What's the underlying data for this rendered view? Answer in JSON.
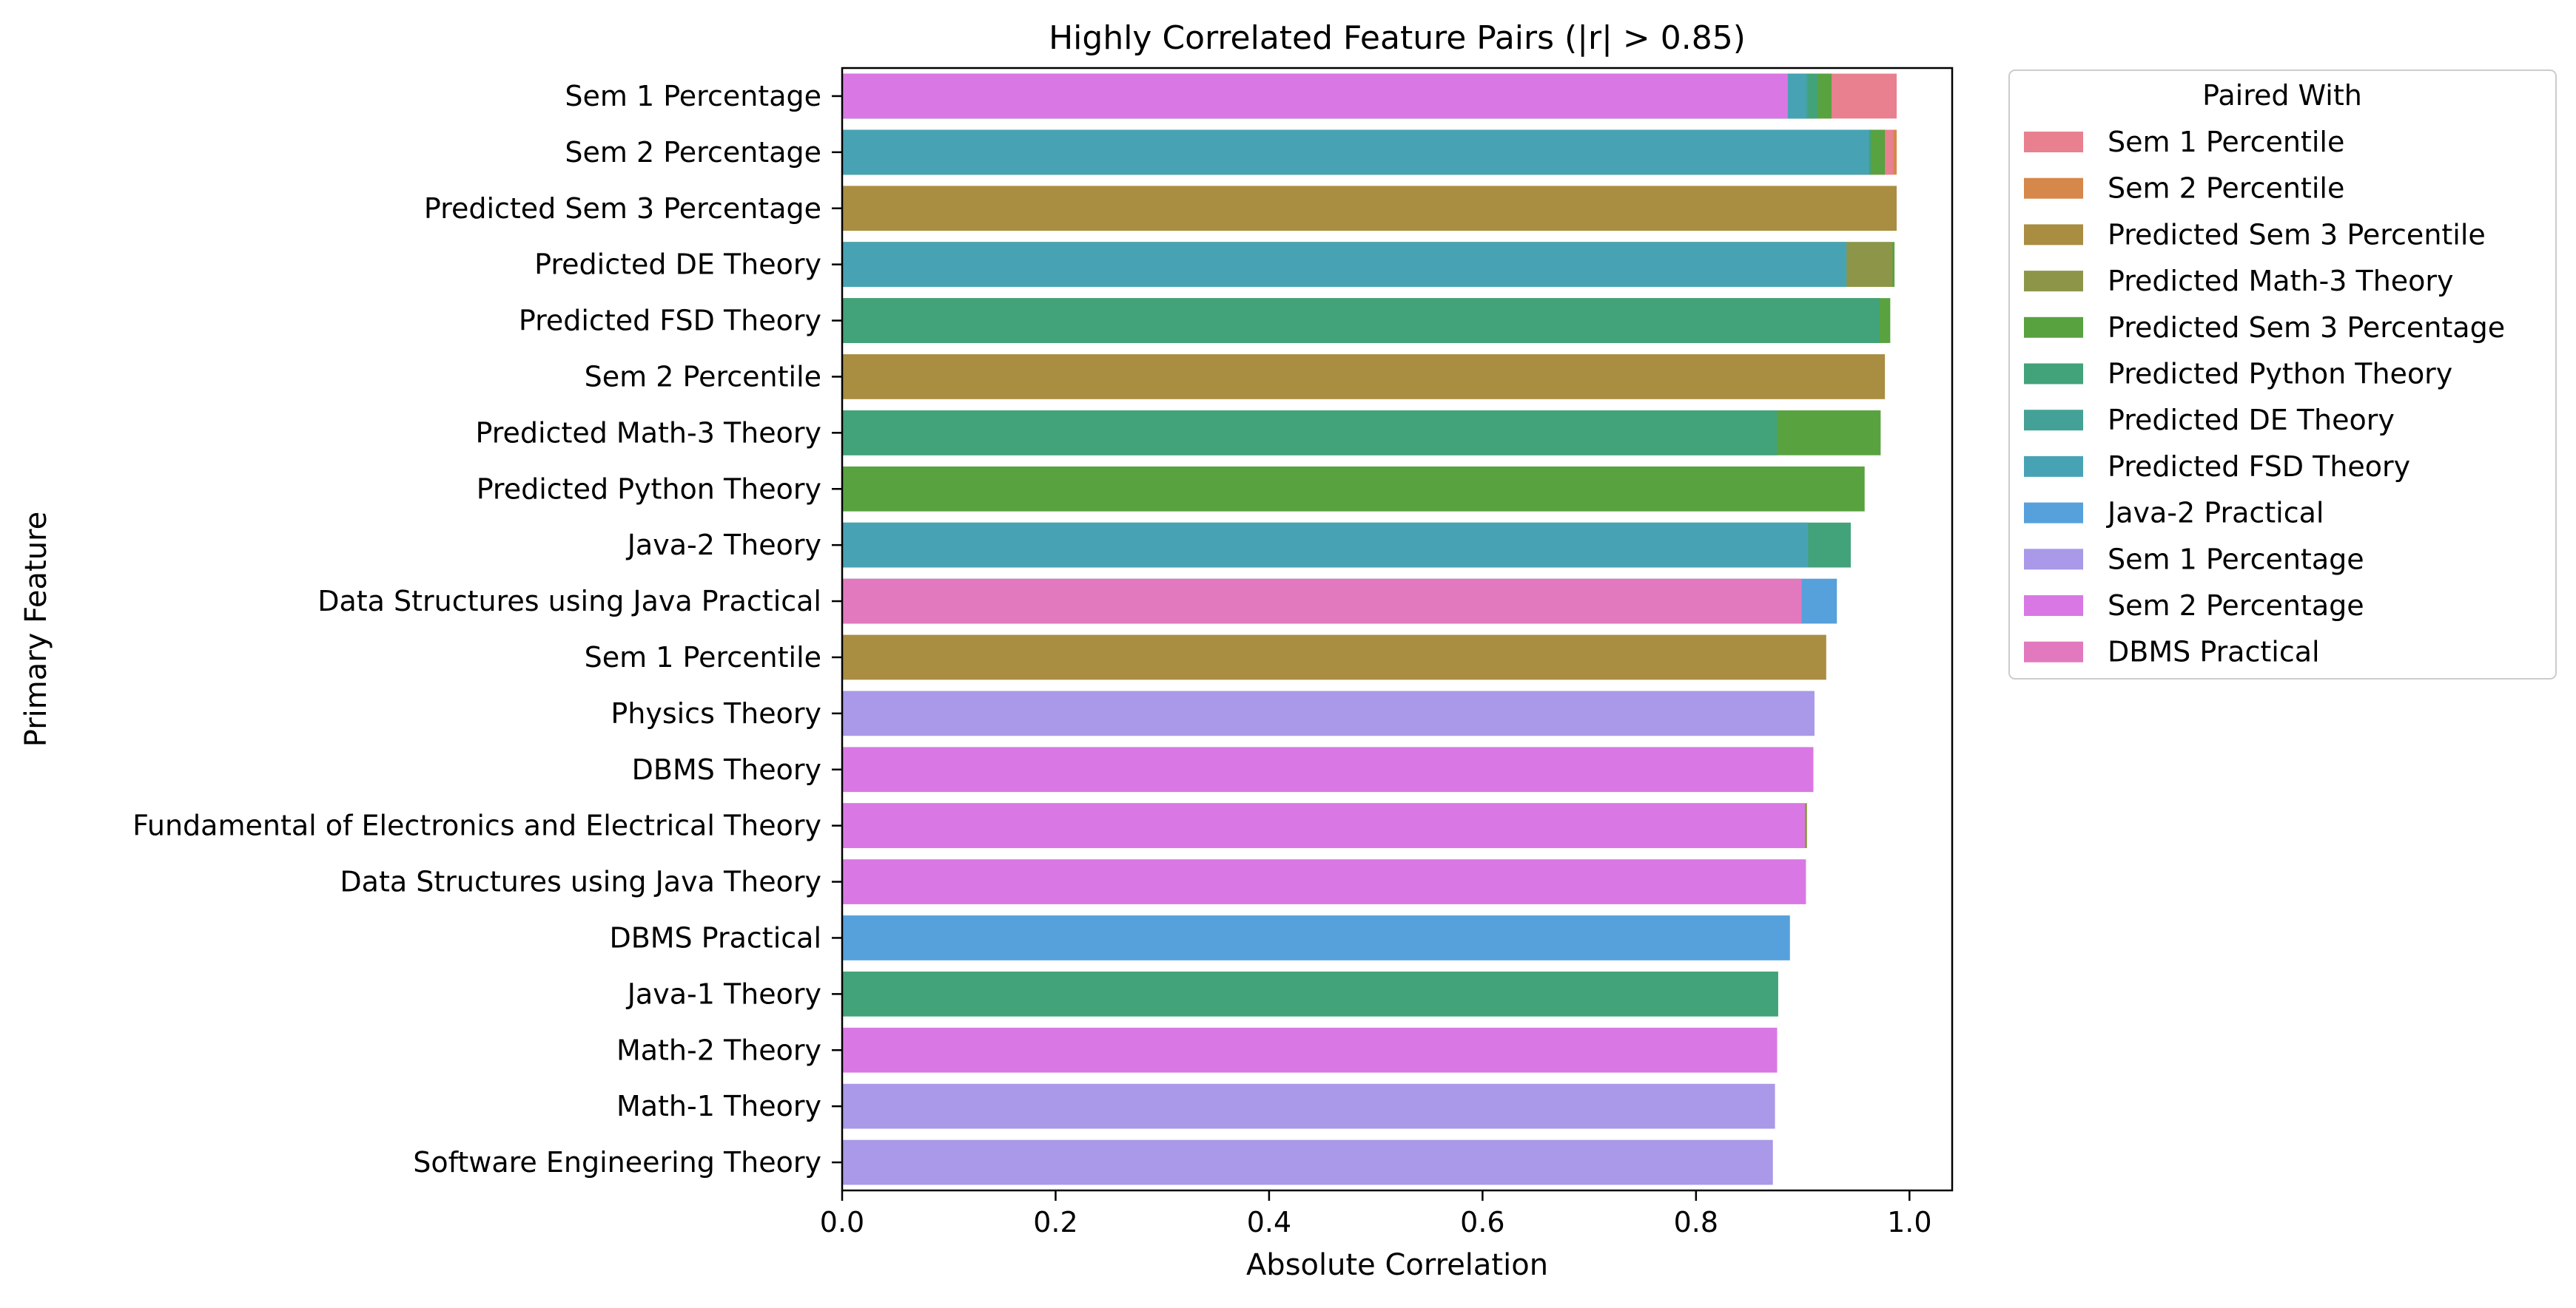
{
  "chart_data": {
    "type": "bar",
    "orientation": "horizontal",
    "stacking": "overlay",
    "title": "Highly Correlated Feature Pairs (|r| > 0.85)",
    "xlabel": "Absolute Correlation",
    "ylabel": "Primary Feature",
    "xlim": [
      0.0,
      1.04
    ],
    "xticks": [
      0.0,
      0.2,
      0.4,
      0.6,
      0.8,
      1.0
    ],
    "xtick_labels": [
      "0.0",
      "0.2",
      "0.4",
      "0.6",
      "0.8",
      "1.0"
    ],
    "grid": false,
    "legend": {
      "title": "Paired With",
      "placement": "outside-upper-right",
      "entries": [
        {
          "name": "Sem 1 Percentile",
          "color": "#e8808f"
        },
        {
          "name": "Sem 2 Percentile",
          "color": "#d6874a"
        },
        {
          "name": "Predicted Sem 3 Percentile",
          "color": "#a98d41"
        },
        {
          "name": "Predicted Math-3 Theory",
          "color": "#8d9648"
        },
        {
          "name": "Predicted Sem 3 Percentage",
          "color": "#59a240"
        },
        {
          "name": "Predicted Python Theory",
          "color": "#42a27a"
        },
        {
          "name": "Predicted DE Theory",
          "color": "#44a197"
        },
        {
          "name": "Predicted FSD Theory",
          "color": "#47a3b4"
        },
        {
          "name": "Java-2 Practical",
          "color": "#56a0dc"
        },
        {
          "name": "Sem 1 Percentage",
          "color": "#a999e8"
        },
        {
          "name": "Sem 2 Percentage",
          "color": "#d978e4"
        },
        {
          "name": "DBMS Practical",
          "color": "#e279be"
        }
      ]
    },
    "categories": [
      "Sem 1 Percentage",
      "Sem 2 Percentage",
      "Predicted Sem 3 Percentage",
      "Predicted DE Theory",
      "Predicted FSD Theory",
      "Sem 2 Percentile",
      "Predicted Math-3 Theory",
      "Predicted Python Theory",
      "Java-2 Theory",
      "Data Structures using Java Practical",
      "Sem 1 Percentile",
      "Physics Theory",
      "DBMS Theory",
      "Fundamental of Electronics and Electrical Theory",
      "Data Structures using Java Theory",
      "DBMS Practical",
      "Java-1 Theory",
      "Math-2 Theory",
      "Math-1 Theory",
      "Software Engineering Theory"
    ],
    "series": [
      {
        "name": "Sem 1 Percentile",
        "values": [
          0.988,
          0.985,
          null,
          null,
          null,
          null,
          null,
          null,
          null,
          null,
          null,
          null,
          null,
          null,
          null,
          null,
          null,
          null,
          null,
          null
        ]
      },
      {
        "name": "Sem 2 Percentile",
        "values": [
          null,
          0.988,
          null,
          null,
          null,
          null,
          null,
          null,
          null,
          null,
          null,
          null,
          null,
          null,
          null,
          null,
          null,
          null,
          null,
          null
        ]
      },
      {
        "name": "Predicted Sem 3 Percentile",
        "values": [
          null,
          null,
          0.988,
          null,
          null,
          0.977,
          null,
          null,
          null,
          null,
          0.922,
          null,
          null,
          null,
          null,
          null,
          null,
          null,
          null,
          null
        ]
      },
      {
        "name": "Predicted Math-3 Theory",
        "values": [
          null,
          null,
          null,
          0.984,
          null,
          null,
          null,
          null,
          null,
          null,
          null,
          null,
          null,
          0.904,
          null,
          null,
          null,
          null,
          null,
          null
        ]
      },
      {
        "name": "Predicted Sem 3 Percentage",
        "values": [
          0.927,
          0.977,
          null,
          0.986,
          0.982,
          null,
          0.973,
          0.958,
          null,
          null,
          null,
          null,
          null,
          null,
          null,
          null,
          null,
          null,
          null,
          null
        ]
      },
      {
        "name": "Predicted Python Theory",
        "values": [
          0.914,
          0.964,
          null,
          null,
          0.972,
          null,
          0.876,
          null,
          0.945,
          null,
          null,
          null,
          null,
          null,
          null,
          null,
          0.877,
          null,
          null,
          null
        ]
      },
      {
        "name": "Predicted DE Theory",
        "values": [
          0.905,
          null,
          null,
          null,
          null,
          null,
          null,
          null,
          null,
          null,
          null,
          null,
          null,
          null,
          null,
          null,
          null,
          null,
          null,
          null
        ]
      },
      {
        "name": "Predicted FSD Theory",
        "values": [
          0.903,
          0.962,
          null,
          0.941,
          null,
          null,
          null,
          null,
          0.905,
          null,
          null,
          null,
          null,
          null,
          null,
          null,
          null,
          null,
          null,
          null
        ]
      },
      {
        "name": "Java-2 Practical",
        "values": [
          null,
          null,
          null,
          null,
          null,
          null,
          null,
          null,
          null,
          0.932,
          null,
          null,
          null,
          null,
          null,
          0.888,
          null,
          null,
          null,
          null
        ]
      },
      {
        "name": "Sem 1 Percentage",
        "values": [
          null,
          null,
          null,
          null,
          null,
          null,
          null,
          null,
          null,
          null,
          null,
          0.911,
          null,
          null,
          null,
          null,
          null,
          null,
          0.874,
          0.872
        ]
      },
      {
        "name": "Sem 2 Percentage",
        "values": [
          0.886,
          null,
          null,
          null,
          null,
          null,
          null,
          null,
          null,
          null,
          null,
          null,
          0.91,
          0.902,
          0.903,
          null,
          null,
          0.876,
          null,
          null
        ]
      },
      {
        "name": "DBMS Practical",
        "values": [
          null,
          null,
          null,
          null,
          null,
          null,
          null,
          null,
          null,
          0.899,
          null,
          null,
          null,
          null,
          null,
          null,
          null,
          null,
          null,
          null
        ]
      }
    ]
  }
}
